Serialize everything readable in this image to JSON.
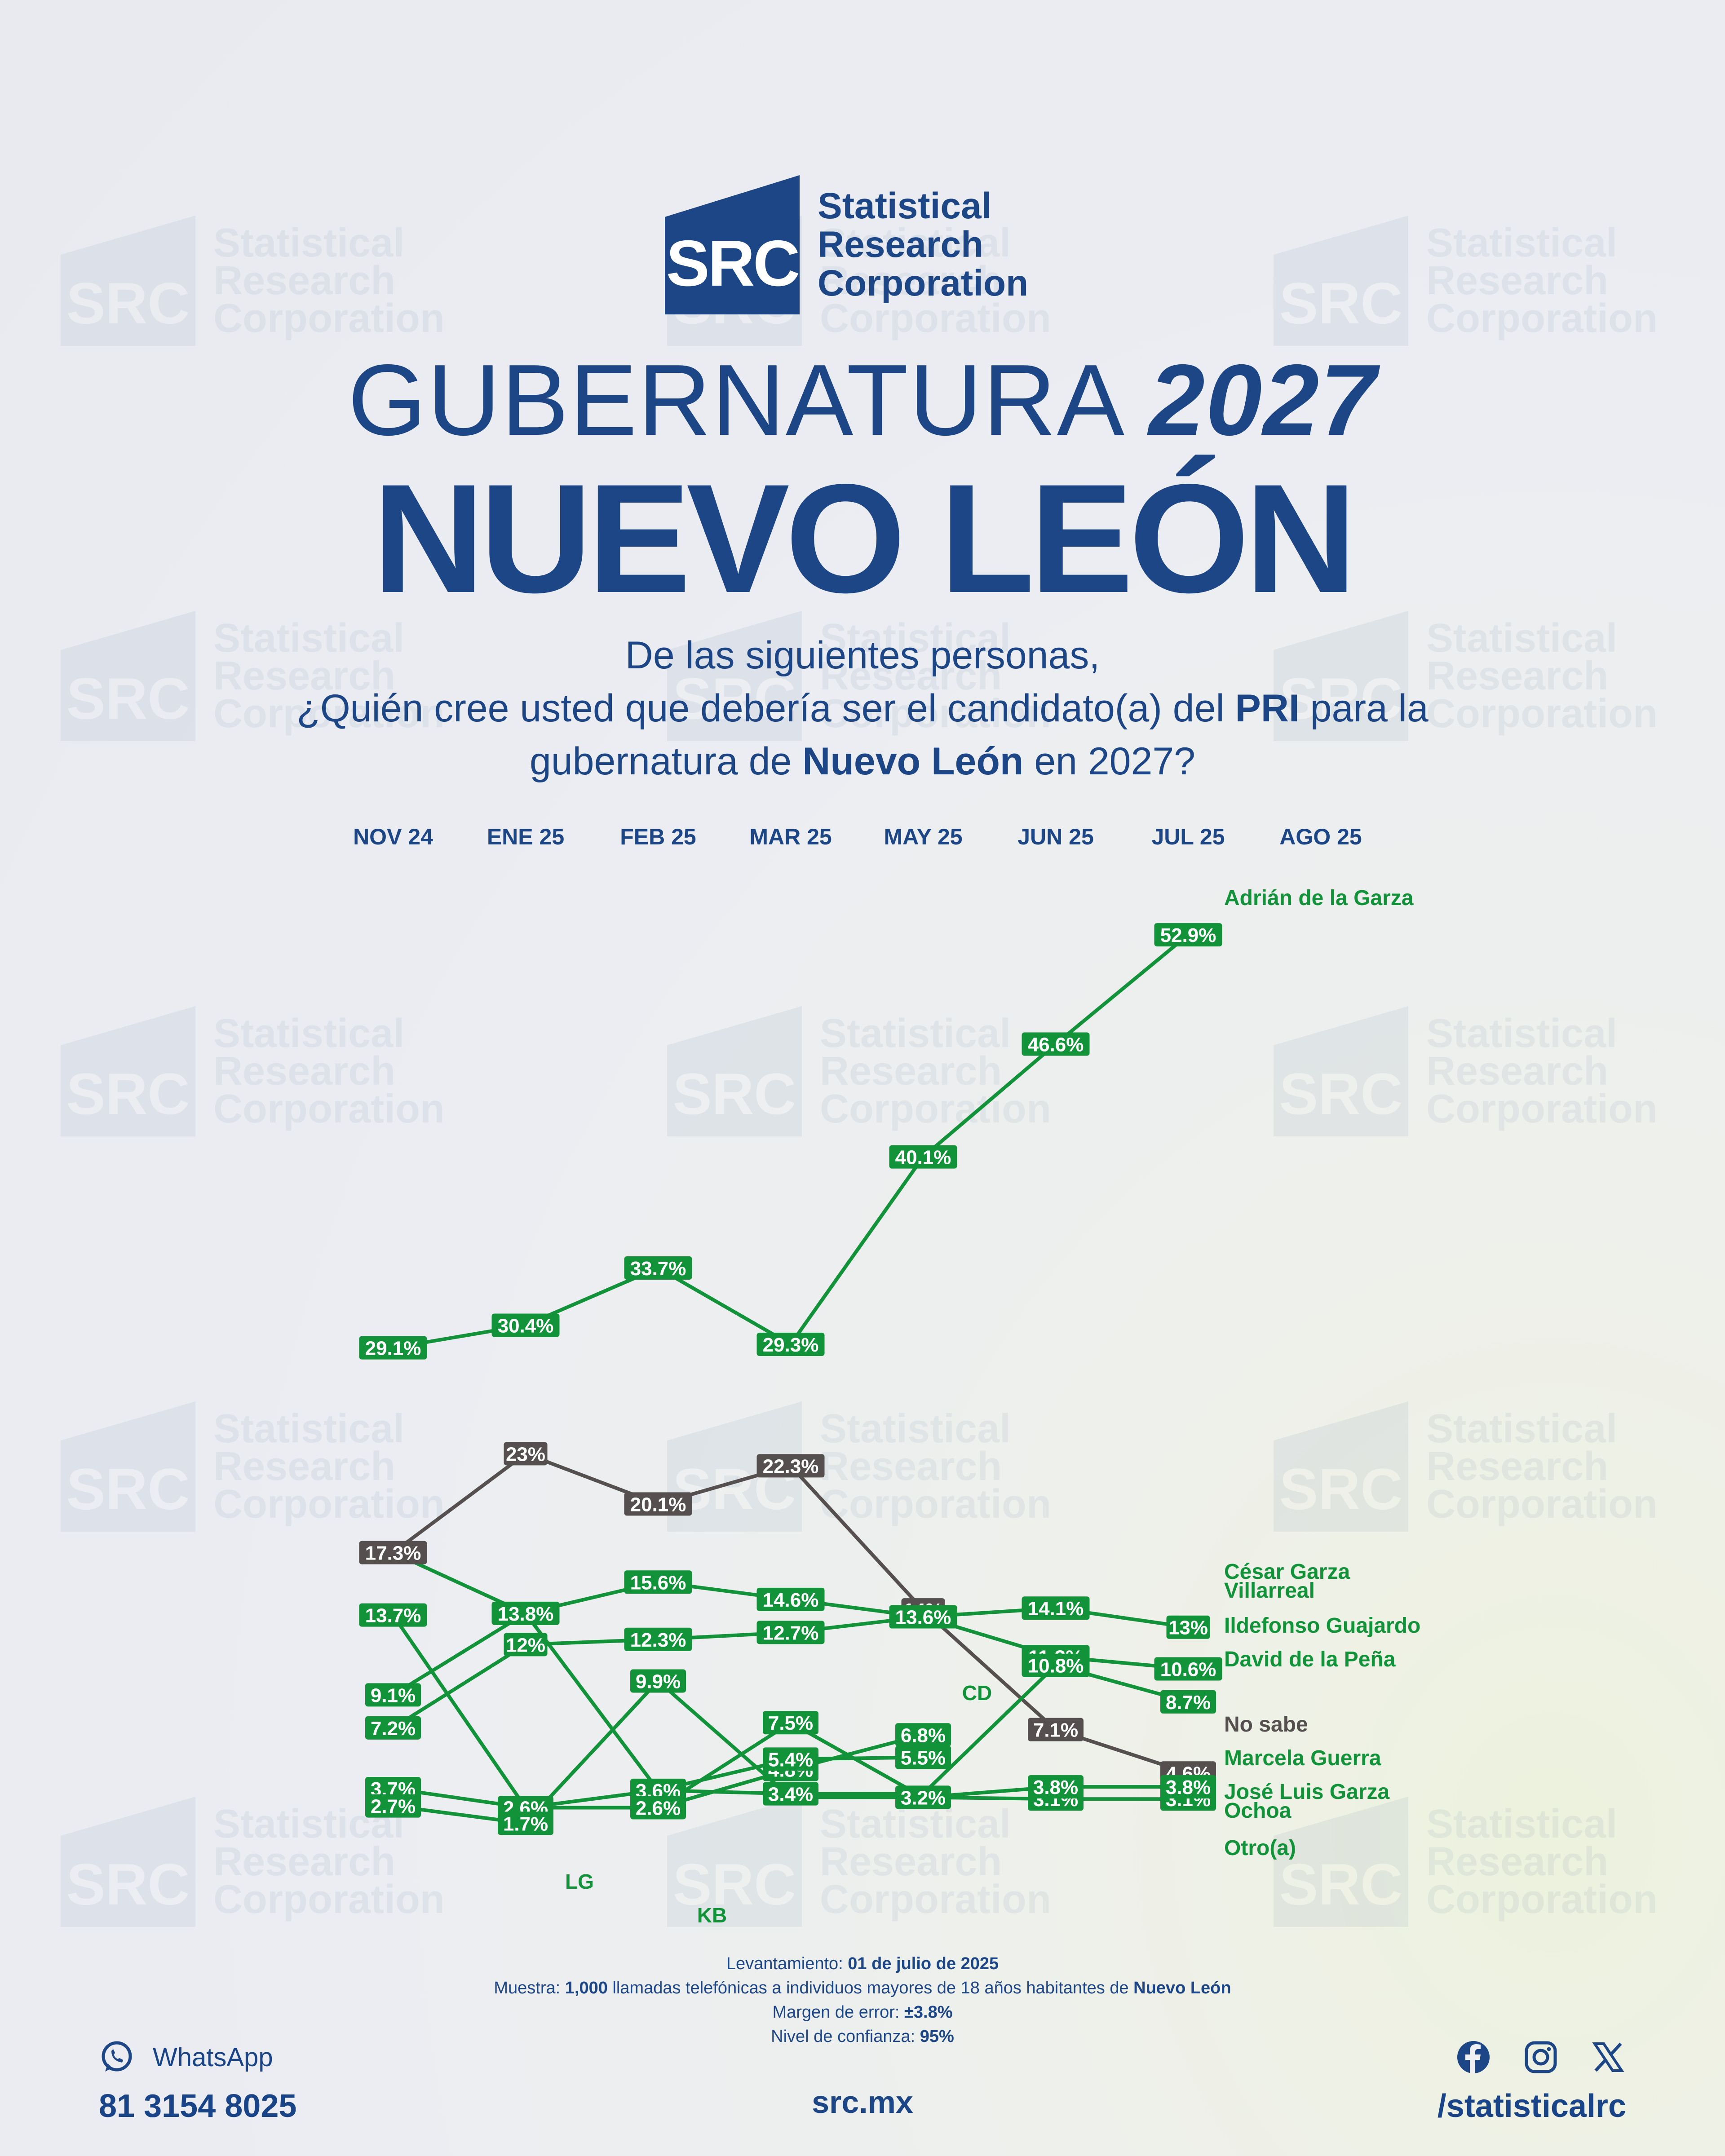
{
  "logo": {
    "mark": "SRC",
    "name_line1": "Statistical",
    "name_line2": "Research",
    "name_line3": "Corporation"
  },
  "title": {
    "line1_light": "GUBERNATURA ",
    "line1_bold": "2027",
    "line2": "NUEVO LEÓN"
  },
  "question": {
    "line1": "De las siguientes personas,",
    "line2_a": "¿Quién cree usted que debería ser el candidato(a) del ",
    "line2_b": "PRI",
    "line2_c": " para la",
    "line3_a": "gubernatura de ",
    "line3_b": "Nuevo León",
    "line3_c": " en 2027?"
  },
  "colors": {
    "green": "#12933a",
    "gray": "#55504f",
    "blue": "#1d4687"
  },
  "chart_data": {
    "type": "line",
    "categories": [
      "NOV 24",
      "ENE 25",
      "FEB 25",
      "MAR 25",
      "MAY 25",
      "JUN 25",
      "JUL 25",
      "AGO 25"
    ],
    "ylim": [
      0,
      55
    ],
    "series": [
      {
        "name": "Adrián de la Garza",
        "color": "#12933a",
        "points": [
          [
            0,
            29.1
          ],
          [
            1,
            30.4
          ],
          [
            2,
            33.7
          ],
          [
            3,
            29.3
          ],
          [
            4,
            40.1
          ],
          [
            5,
            46.6
          ],
          [
            6,
            52.9
          ]
        ],
        "labels": [
          "29.1%",
          "30.4%",
          "33.7%",
          "29.3%",
          "40.1%",
          "46.6%",
          "52.9%"
        ]
      },
      {
        "name": "No sabe",
        "color": "#55504f",
        "points": [
          [
            0,
            17.3
          ],
          [
            1,
            23
          ],
          [
            2,
            20.1
          ],
          [
            3,
            22.3
          ],
          [
            4,
            14
          ],
          [
            5,
            7.1
          ],
          [
            6,
            4.6
          ]
        ],
        "labels": [
          "17.3%",
          "23%",
          "20.1%",
          "22.3%",
          "14%",
          "7.1%",
          "4.6%"
        ]
      },
      {
        "name": "César Garza Villarreal",
        "color": "#12933a",
        "points": [
          [
            0,
            17.3
          ],
          [
            1,
            13.8
          ],
          [
            2,
            15.6
          ],
          [
            3,
            14.6
          ],
          [
            4,
            13.6
          ],
          [
            5,
            14.1
          ],
          [
            6,
            13
          ]
        ],
        "labels": [
          "",
          "13.8%",
          "15.6%",
          "14.6%",
          "13.6%",
          "14.1%",
          "13%"
        ]
      },
      {
        "name": "Ildefonso Guajardo",
        "color": "#12933a",
        "points": [
          [
            0,
            7.2
          ],
          [
            1,
            12
          ],
          [
            2,
            12.3
          ],
          [
            3,
            12.7
          ],
          [
            4,
            13.6
          ],
          [
            5,
            11.3
          ],
          [
            6,
            10.6
          ]
        ],
        "labels": [
          "7.2%",
          "12%",
          "12.3%",
          "12.7%",
          "",
          "11.3%",
          "10.6%"
        ]
      },
      {
        "name": "David de la Peña",
        "color": "#12933a",
        "points": [
          [
            0,
            9.1
          ],
          [
            1,
            13.8
          ],
          [
            2,
            3.6
          ],
          [
            3,
            3.4
          ],
          [
            4,
            3.4
          ],
          [
            5,
            10.8
          ],
          [
            6,
            8.7
          ]
        ],
        "labels": [
          "9.1%",
          "",
          "3.6%",
          "3.4%",
          "",
          "10.8%",
          "8.7%"
        ]
      },
      {
        "name": "Marcela Guerra",
        "color": "#12933a",
        "points": [
          [
            0,
            13.7
          ],
          [
            1,
            2.6
          ],
          [
            2,
            2.6
          ],
          [
            3,
            4.8
          ],
          [
            4,
            6.8
          ]
        ],
        "labels": [
          "13.7%",
          "2.6%",
          "2.6%",
          "4.8%",
          "6.8%"
        ]
      },
      {
        "name": "José Luis Garza Ochoa",
        "color": "#12933a",
        "points": [
          [
            0,
            3.7
          ],
          [
            1,
            2.6
          ],
          [
            2,
            3.6
          ],
          [
            3,
            5.4
          ],
          [
            4,
            5.5
          ]
        ],
        "labels": [
          "3.7%",
          "",
          "",
          "5.4%",
          "5.5%"
        ]
      },
      {
        "name": "Otro(a)",
        "color": "#12933a",
        "points": [
          [
            0,
            2.7
          ],
          [
            1,
            1.7
          ],
          [
            2,
            9.9
          ],
          [
            3,
            3.2
          ],
          [
            4,
            3.2
          ],
          [
            5,
            3.1
          ],
          [
            6,
            3.1
          ]
        ],
        "labels": [
          "2.7%",
          "1.7%",
          "9.9%",
          "",
          "3.2%",
          "3.1%",
          "3.1%"
        ]
      },
      {
        "name": "",
        "color": "#12933a",
        "points": [
          [
            2,
            2.6
          ],
          [
            3,
            7.5
          ],
          [
            4,
            3.2
          ],
          [
            5,
            3.8
          ],
          [
            6,
            3.8
          ]
        ],
        "labels": [
          "",
          "7.5%",
          "",
          "3.8%",
          "3.8%"
        ]
      }
    ],
    "annotations": [
      "CD",
      "LG",
      "KB"
    ]
  },
  "footer": {
    "l1_a": "Levantamiento: ",
    "l1_b": "01 de julio de 2025",
    "l2_a": "Muestra: ",
    "l2_b": "1,000",
    "l2_c": " llamadas telefónicas a individuos mayores de 18 años habitantes de ",
    "l2_d": "Nuevo León",
    "l3_a": "Margen de error: ",
    "l3_b": "±3.8%",
    "l4_a": "Nivel de confianza: ",
    "l4_b": "95%",
    "whatsapp_label": "WhatsApp",
    "phone": "81 3154 8025",
    "site": "src.mx",
    "handle": "/statisticalrc",
    "icons": [
      "whatsapp-icon",
      "facebook-icon",
      "instagram-icon",
      "x-icon"
    ]
  }
}
